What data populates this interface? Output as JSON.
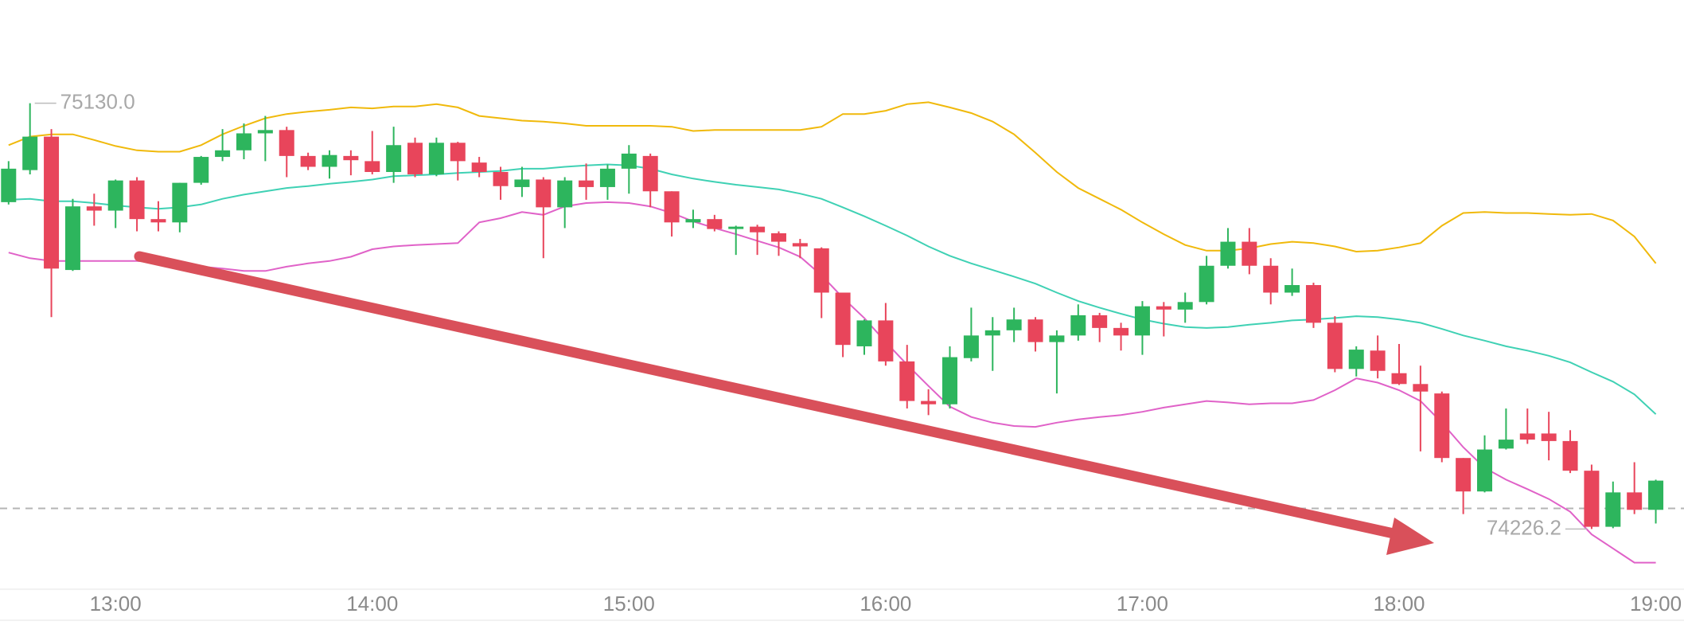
{
  "chart_data": {
    "type": "candlestick",
    "categories": [
      null,
      null,
      null,
      null,
      null,
      "13:00",
      null,
      null,
      null,
      null,
      null,
      null,
      null,
      null,
      null,
      null,
      null,
      "14:00",
      null,
      null,
      null,
      null,
      null,
      null,
      null,
      null,
      null,
      null,
      null,
      "15:00",
      null,
      null,
      null,
      null,
      null,
      null,
      null,
      null,
      null,
      null,
      null,
      "16:00",
      null,
      null,
      null,
      null,
      null,
      null,
      null,
      null,
      null,
      null,
      null,
      "17:00",
      null,
      null,
      null,
      null,
      null,
      null,
      null,
      null,
      null,
      null,
      null,
      "18:00",
      null,
      null,
      null,
      null,
      null,
      null,
      null,
      null,
      null,
      null,
      null,
      "19:00"
    ],
    "open": [
      74920,
      74988,
      75059,
      74776,
      74911,
      74902,
      74966,
      74884,
      74877,
      74961,
      75016,
      75030,
      75066,
      75073,
      75018,
      74995,
      75018,
      75007,
      74984,
      75046,
      74979,
      75046,
      75004,
      74984,
      74952,
      74968,
      74909,
      74966,
      74952,
      74991,
      75018,
      74943,
      74877,
      74884,
      74863,
      74868,
      74854,
      74833,
      74822,
      74728,
      74614,
      74669,
      74582,
      74498,
      74491,
      74589,
      74637,
      74648,
      74671,
      74623,
      74637,
      74680,
      74653,
      74637,
      74699,
      74692,
      74708,
      74785,
      74836,
      74785,
      74728,
      74744,
      74664,
      74566,
      74605,
      74557,
      74534,
      74514,
      74377,
      74306,
      74397,
      74429,
      74429,
      74413,
      74350,
      74231,
      74304,
      74267
    ],
    "high": [
      75007,
      75130,
      75075,
      74927,
      74938,
      74968,
      74973,
      74922,
      74961,
      75018,
      75075,
      75087,
      75103,
      75080,
      75025,
      75030,
      75030,
      75071,
      75080,
      75057,
      75057,
      75048,
      75016,
      74995,
      74995,
      74973,
      74973,
      75002,
      75000,
      75041,
      75023,
      74943,
      74904,
      74893,
      74870,
      74872,
      74858,
      74842,
      74824,
      74728,
      74671,
      74706,
      74617,
      74523,
      74614,
      74696,
      74676,
      74696,
      74676,
      74648,
      74703,
      74685,
      74664,
      74710,
      74708,
      74728,
      74806,
      74865,
      74865,
      74801,
      74779,
      74749,
      74678,
      74614,
      74637,
      74619,
      74573,
      74518,
      74377,
      74425,
      74482,
      74482,
      74475,
      74436,
      74363,
      74327,
      74368,
      74331
    ],
    "low": [
      74915,
      74979,
      74676,
      74774,
      74870,
      74865,
      74858,
      74858,
      74856,
      74957,
      75007,
      75011,
      75007,
      74973,
      74988,
      74970,
      74977,
      74979,
      74961,
      74973,
      74975,
      74966,
      74973,
      74925,
      74931,
      74801,
      74865,
      74925,
      74925,
      74938,
      74909,
      74847,
      74865,
      74858,
      74808,
      74808,
      74806,
      74801,
      74674,
      74591,
      74596,
      74573,
      74482,
      74468,
      74482,
      74582,
      74562,
      74623,
      74603,
      74514,
      74626,
      74623,
      74605,
      74596,
      74635,
      74664,
      74703,
      74779,
      74767,
      74703,
      74721,
      74653,
      74559,
      74550,
      74546,
      74532,
      74391,
      74368,
      74258,
      74304,
      74395,
      74407,
      74372,
      74345,
      74226.2,
      74228,
      74258,
      74238
    ],
    "close": [
      74991,
      75059,
      74779,
      74911,
      74902,
      74966,
      74884,
      74877,
      74961,
      75016,
      75030,
      75066,
      75073,
      75018,
      74995,
      75020,
      75009,
      74984,
      75041,
      74979,
      75046,
      75007,
      74984,
      74954,
      74968,
      74909,
      74966,
      74952,
      74991,
      75023,
      74943,
      74877,
      74884,
      74863,
      74868,
      74856,
      74836,
      74826,
      74728,
      74617,
      74669,
      74582,
      74498,
      74491,
      74591,
      74637,
      74648,
      74671,
      74623,
      74637,
      74680,
      74653,
      74637,
      74699,
      74692,
      74708,
      74785,
      74836,
      74785,
      74728,
      74744,
      74664,
      74566,
      74607,
      74562,
      74534,
      74518,
      74377,
      74306,
      74395,
      74416,
      74416,
      74413,
      74350,
      74231,
      74304,
      74267,
      74329
    ],
    "up_color": "#2db55d",
    "down_color": "#e8455b",
    "lines": [
      {
        "color": "#f0b90b",
        "values": [
          75041,
          75059,
          75064,
          75064,
          75052,
          75039,
          75030,
          75027,
          75027,
          75041,
          75064,
          75082,
          75098,
          75107,
          75112,
          75116,
          75121,
          75119,
          75123,
          75123,
          75128,
          75121,
          75103,
          75098,
          75093,
          75091,
          75087,
          75082,
          75082,
          75082,
          75082,
          75080,
          75071,
          75073,
          75073,
          75073,
          75073,
          75073,
          75080,
          75107,
          75107,
          75114,
          75128,
          75132,
          75121,
          75109,
          75091,
          75064,
          75025,
          74984,
          74950,
          74927,
          74904,
          74877,
          74852,
          74829,
          74817,
          74817,
          74822,
          74831,
          74836,
          74833,
          74826,
          74815,
          74817,
          74824,
          74833,
          74870,
          74897,
          74899,
          74897,
          74897,
          74895,
          74893,
          74895,
          74881,
          74847,
          74790
        ]
      },
      {
        "color": "#3fd1b4",
        "values": [
          74925,
          74927,
          74922,
          74922,
          74918,
          74913,
          74909,
          74906,
          74909,
          74915,
          74927,
          74936,
          74943,
          74950,
          74954,
          74959,
          74963,
          74968,
          74975,
          74977,
          74979,
          74982,
          74984,
          74986,
          74991,
          74991,
          74995,
          74998,
          75000,
          74998,
          74991,
          74979,
          74970,
          74963,
          74957,
          74952,
          74947,
          74938,
          74927,
          74909,
          74890,
          74870,
          74849,
          74826,
          74806,
          74790,
          74776,
          74762,
          74747,
          74728,
          74710,
          74696,
          74683,
          74671,
          74662,
          74655,
          74653,
          74655,
          74660,
          74664,
          74669,
          74671,
          74674,
          74678,
          74676,
          74671,
          74664,
          74651,
          74637,
          74626,
          74614,
          74605,
          74594,
          74580,
          74559,
          74539,
          74512,
          74470
        ]
      },
      {
        "color": "#e062c8",
        "values": [
          74813,
          74801,
          74795,
          74795,
          74795,
          74795,
          74795,
          74792,
          74790,
          74783,
          74779,
          74774,
          74774,
          74783,
          74790,
          74795,
          74804,
          74820,
          74826,
          74829,
          74831,
          74833,
          74877,
          74886,
          74899,
          74893,
          74911,
          74918,
          74920,
          74918,
          74911,
          74897,
          74879,
          74865,
          74852,
          74838,
          74824,
          74804,
          74765,
          74717,
          74674,
          74623,
          74575,
          74530,
          74486,
          74464,
          74452,
          74445,
          74443,
          74452,
          74459,
          74464,
          74468,
          74475,
          74484,
          74491,
          74498,
          74495,
          74491,
          74493,
          74493,
          74500,
          74521,
          74546,
          74537,
          74521,
          74498,
          74452,
          74400,
          74356,
          74331,
          74311,
          74290,
          74263,
          74215,
          74185,
          74155,
          74155
        ]
      }
    ],
    "price_line": 74270,
    "annotations": [
      {
        "value": 75130,
        "label": "75130.0",
        "field": "high"
      },
      {
        "value": 74226.2,
        "label": "74226.2",
        "field": "low"
      }
    ],
    "ylim": [
      74098.5,
      75349
    ]
  }
}
